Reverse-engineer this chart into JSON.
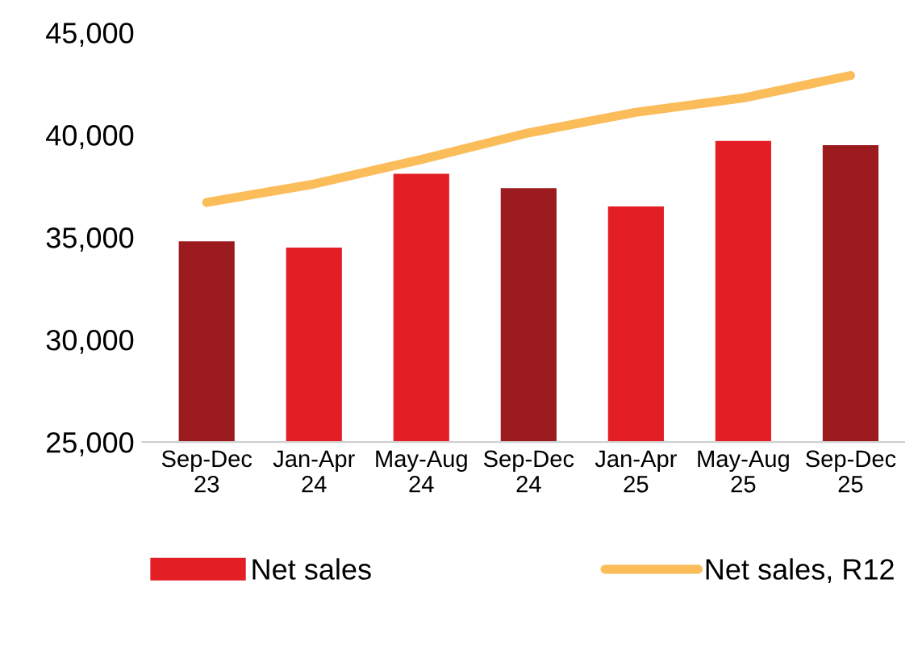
{
  "chart_data": {
    "type": "bar",
    "categories": [
      "Sep-Dec\n23",
      "Jan-Apr\n24",
      "May-Aug\n24",
      "Sep-Dec\n24",
      "Jan-Apr\n25",
      "May-Aug\n25",
      "Sep-Dec\n25"
    ],
    "series": [
      {
        "name": "Net sales",
        "color": "#e31e24",
        "colors": [
          "#9b1b1f",
          "#e31e24",
          "#e31e24",
          "#9b1b1f",
          "#e31e24",
          "#e31e24",
          "#9b1b1f"
        ],
        "values": [
          34800,
          34500,
          38100,
          37400,
          36500,
          39700,
          39500
        ]
      },
      {
        "name": "Net sales, R12",
        "type": "line",
        "color": "#fbbc5a",
        "values": [
          36700,
          37600,
          38800,
          40100,
          41100,
          41800,
          42900
        ]
      }
    ],
    "ylim": [
      25000,
      45000
    ],
    "yticks": [
      {
        "value": 25000,
        "label": "25,000"
      },
      {
        "value": 30000,
        "label": "30,000"
      },
      {
        "value": 35000,
        "label": "35,000"
      },
      {
        "value": 40000,
        "label": "40,000"
      },
      {
        "value": 45000,
        "label": "45,000"
      }
    ],
    "grid": false,
    "legend": "bottom",
    "marker": "none"
  }
}
